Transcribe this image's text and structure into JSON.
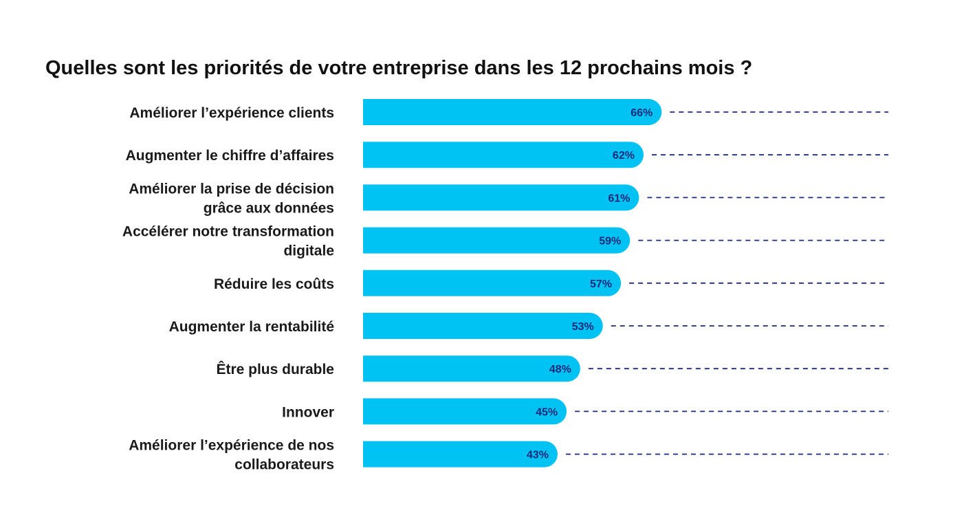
{
  "chart_data": {
    "type": "bar",
    "orientation": "horizontal",
    "title": "Quelles sont les priorités de votre entreprise dans les 12 prochains mois ?",
    "xlabel": "",
    "ylabel": "",
    "xlim": [
      0,
      100
    ],
    "unit": "%",
    "categories": [
      [
        "Améliorer l’expérience clients"
      ],
      [
        "Augmenter le chiffre d’affaires"
      ],
      [
        "Améliorer la prise de décision",
        "grâce aux données"
      ],
      [
        "Accélérer notre transformation",
        "digitale"
      ],
      [
        "Réduire les coûts"
      ],
      [
        "Augmenter la rentabilité"
      ],
      [
        "Être plus durable"
      ],
      [
        "Innover"
      ],
      [
        "Améliorer l’expérience de nos",
        "collaborateurs"
      ]
    ],
    "values": [
      66,
      62,
      61,
      59,
      57,
      53,
      48,
      45,
      43
    ],
    "value_labels": [
      "66%",
      "62%",
      "61%",
      "59%",
      "57%",
      "53%",
      "48%",
      "45%",
      "43%"
    ],
    "grid": false,
    "legend": "none"
  },
  "colors": {
    "bar": "#00c2f3",
    "value_text": "#1b2a7a",
    "leader_line": "#1b2a7a",
    "label_text": "#1a1a1a",
    "title_text": "#111111"
  }
}
